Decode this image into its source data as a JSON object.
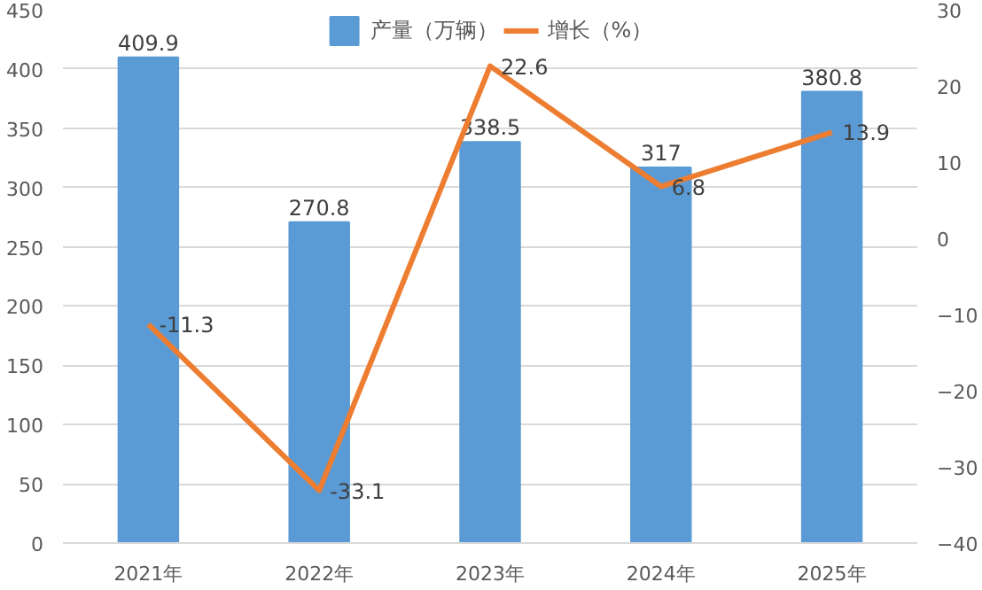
{
  "chart_data": {
    "type": "bar",
    "categories": [
      "2021年",
      "2022年",
      "2023年",
      "2024年",
      "2025年"
    ],
    "series": [
      {
        "name": "产量（万辆）",
        "color": "#5b9bd5",
        "values": [
          409.9,
          270.8,
          338.5,
          317,
          380.8
        ]
      },
      {
        "name": "增长（%）",
        "type": "line",
        "axis": "y2",
        "color": "#ed7d31",
        "values": [
          -11.3,
          -33.1,
          22.6,
          6.8,
          13.9
        ]
      }
    ],
    "ylim": [
      0,
      450
    ],
    "yticks": [
      0,
      50,
      100,
      150,
      200,
      250,
      300,
      350,
      400,
      450
    ],
    "y2lim": [
      -40,
      30
    ],
    "y2ticks": [
      -40,
      -30,
      -20,
      -10,
      0,
      10,
      20,
      30
    ],
    "grid": "y",
    "legend": "top",
    "data_labels": true,
    "marker": "none",
    "line_style": "solid"
  }
}
